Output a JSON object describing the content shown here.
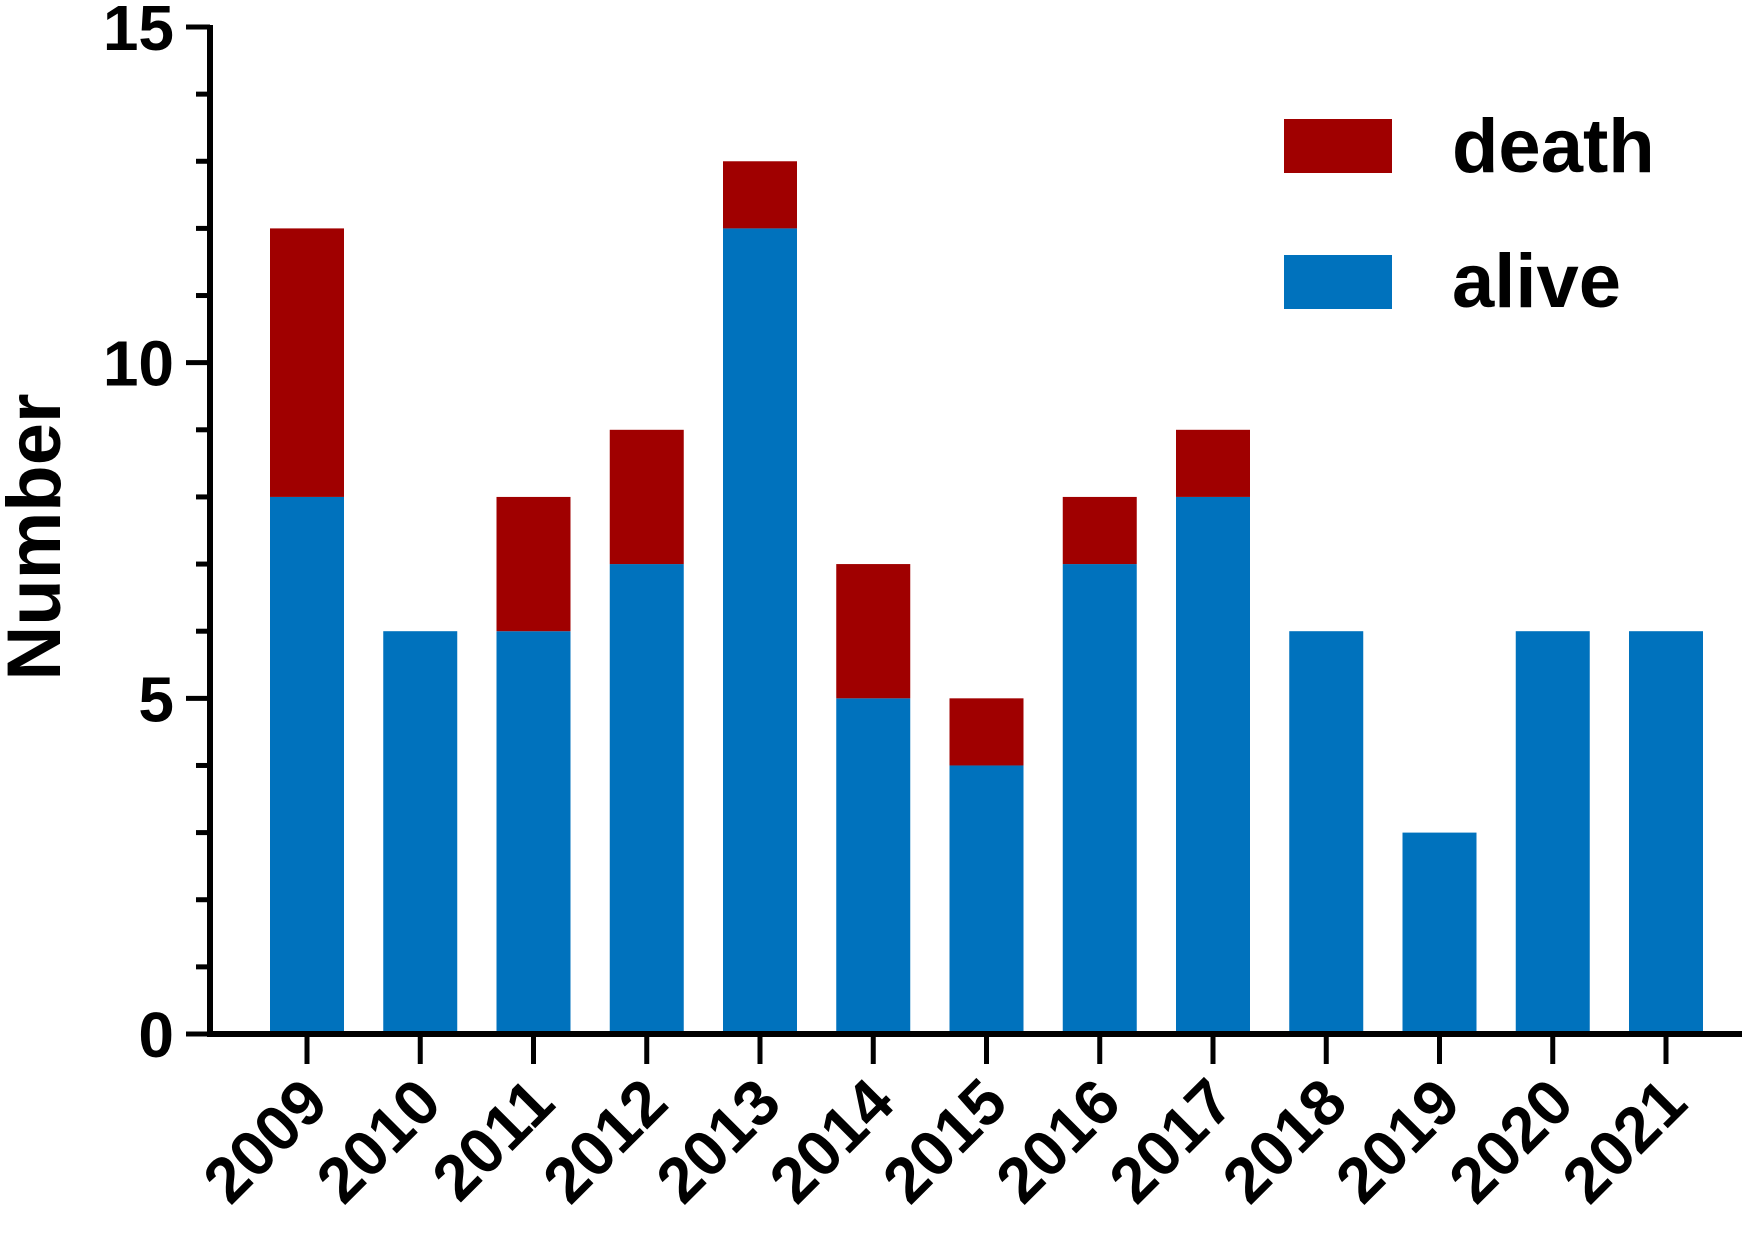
{
  "chart_data": {
    "type": "bar",
    "stacked": true,
    "title": "",
    "xlabel": "",
    "ylabel": "Number",
    "ylim": [
      0,
      15
    ],
    "y_major_ticks": [
      0,
      5,
      10,
      15
    ],
    "y_minor_tick_step": 1,
    "grid": false,
    "legend_position": "top-right",
    "categories": [
      "2009",
      "2010",
      "2011",
      "2012",
      "2013",
      "2014",
      "2015",
      "2016",
      "2017",
      "2018",
      "2019",
      "2020",
      "2021"
    ],
    "series": [
      {
        "name": "alive",
        "color": "#0072BD",
        "values": [
          8,
          6,
          6,
          7,
          12,
          5,
          4,
          7,
          8,
          6,
          3,
          6,
          6
        ]
      },
      {
        "name": "death",
        "color": "#A00000",
        "values": [
          4,
          0,
          2,
          2,
          1,
          2,
          1,
          1,
          1,
          0,
          0,
          0,
          0
        ]
      }
    ],
    "legend_order": [
      "death",
      "alive"
    ]
  }
}
